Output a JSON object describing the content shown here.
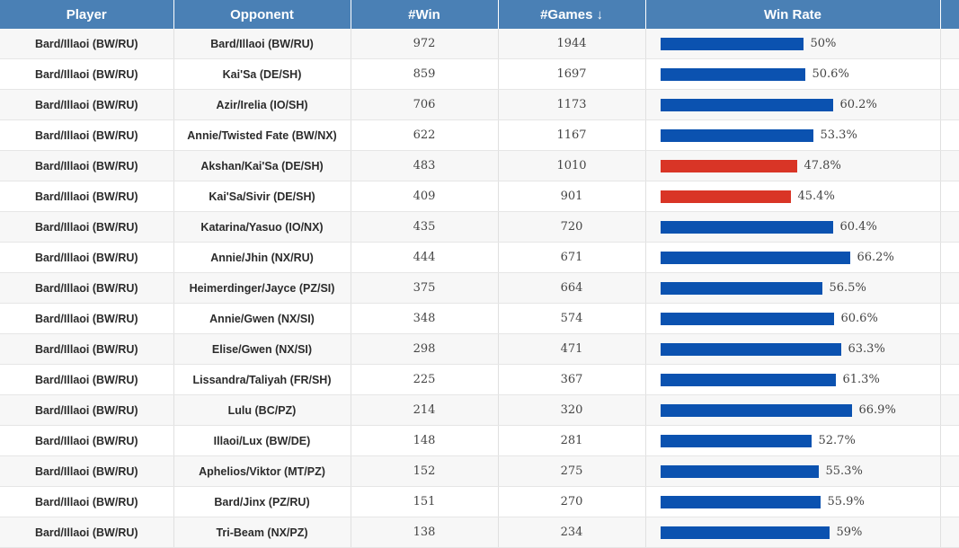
{
  "columns": {
    "player": "Player",
    "opponent": "Opponent",
    "win": "#Win",
    "games": "#Games",
    "win_rate": "Win Rate"
  },
  "sort_icon": "↓",
  "colors": {
    "positive": "#0b52b0",
    "negative": "#d93526"
  },
  "max_bar_rate": 71.0,
  "rows": [
    {
      "player": "Bard/Illaoi (BW/RU)",
      "opponent": "Bard/Illaoi (BW/RU)",
      "win": "972",
      "games": "1944",
      "rate": 50.0,
      "rate_label": "50%"
    },
    {
      "player": "Bard/Illaoi (BW/RU)",
      "opponent": "Kai'Sa (DE/SH)",
      "win": "859",
      "games": "1697",
      "rate": 50.6,
      "rate_label": "50.6%"
    },
    {
      "player": "Bard/Illaoi (BW/RU)",
      "opponent": "Azir/Irelia (IO/SH)",
      "win": "706",
      "games": "1173",
      "rate": 60.2,
      "rate_label": "60.2%"
    },
    {
      "player": "Bard/Illaoi (BW/RU)",
      "opponent": "Annie/Twisted Fate (BW/NX)",
      "win": "622",
      "games": "1167",
      "rate": 53.3,
      "rate_label": "53.3%"
    },
    {
      "player": "Bard/Illaoi (BW/RU)",
      "opponent": "Akshan/Kai'Sa (DE/SH)",
      "win": "483",
      "games": "1010",
      "rate": 47.8,
      "rate_label": "47.8%"
    },
    {
      "player": "Bard/Illaoi (BW/RU)",
      "opponent": "Kai'Sa/Sivir (DE/SH)",
      "win": "409",
      "games": "901",
      "rate": 45.4,
      "rate_label": "45.4%"
    },
    {
      "player": "Bard/Illaoi (BW/RU)",
      "opponent": "Katarina/Yasuo (IO/NX)",
      "win": "435",
      "games": "720",
      "rate": 60.4,
      "rate_label": "60.4%"
    },
    {
      "player": "Bard/Illaoi (BW/RU)",
      "opponent": "Annie/Jhin (NX/RU)",
      "win": "444",
      "games": "671",
      "rate": 66.2,
      "rate_label": "66.2%"
    },
    {
      "player": "Bard/Illaoi (BW/RU)",
      "opponent": "Heimerdinger/Jayce (PZ/SI)",
      "win": "375",
      "games": "664",
      "rate": 56.5,
      "rate_label": "56.5%"
    },
    {
      "player": "Bard/Illaoi (BW/RU)",
      "opponent": "Annie/Gwen (NX/SI)",
      "win": "348",
      "games": "574",
      "rate": 60.6,
      "rate_label": "60.6%"
    },
    {
      "player": "Bard/Illaoi (BW/RU)",
      "opponent": "Elise/Gwen (NX/SI)",
      "win": "298",
      "games": "471",
      "rate": 63.3,
      "rate_label": "63.3%"
    },
    {
      "player": "Bard/Illaoi (BW/RU)",
      "opponent": "Lissandra/Taliyah (FR/SH)",
      "win": "225",
      "games": "367",
      "rate": 61.3,
      "rate_label": "61.3%"
    },
    {
      "player": "Bard/Illaoi (BW/RU)",
      "opponent": "Lulu (BC/PZ)",
      "win": "214",
      "games": "320",
      "rate": 66.9,
      "rate_label": "66.9%"
    },
    {
      "player": "Bard/Illaoi (BW/RU)",
      "opponent": "Illaoi/Lux (BW/DE)",
      "win": "148",
      "games": "281",
      "rate": 52.7,
      "rate_label": "52.7%"
    },
    {
      "player": "Bard/Illaoi (BW/RU)",
      "opponent": "Aphelios/Viktor (MT/PZ)",
      "win": "152",
      "games": "275",
      "rate": 55.3,
      "rate_label": "55.3%"
    },
    {
      "player": "Bard/Illaoi (BW/RU)",
      "opponent": "Bard/Jinx (PZ/RU)",
      "win": "151",
      "games": "270",
      "rate": 55.9,
      "rate_label": "55.9%"
    },
    {
      "player": "Bard/Illaoi (BW/RU)",
      "opponent": "Tri-Beam (NX/PZ)",
      "win": "138",
      "games": "234",
      "rate": 59.0,
      "rate_label": "59%"
    }
  ]
}
